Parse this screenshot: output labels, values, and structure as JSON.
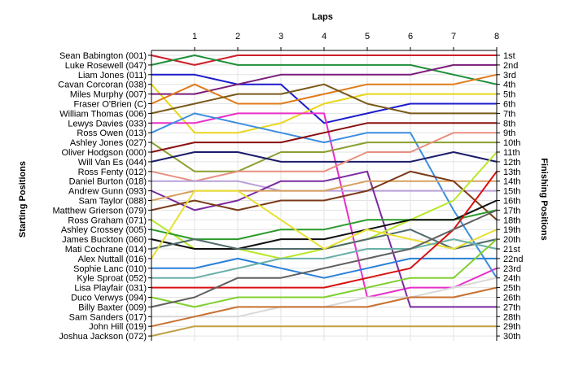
{
  "chart_data": {
    "type": "line",
    "title": "",
    "xlabel": "Laps",
    "ylabel": "Starting Positions",
    "y2label": "Finishing Positions",
    "x": [
      0,
      1,
      2,
      3,
      4,
      5,
      6,
      7,
      8
    ],
    "x_tick_labels": [
      "1",
      "2",
      "3",
      "4",
      "5",
      "6",
      "7",
      "8"
    ],
    "ylim": [
      1,
      30
    ],
    "y_inverted": true,
    "grid": true,
    "finishing_labels": [
      "1st",
      "2nd",
      "3rd",
      "4th",
      "5th",
      "6th",
      "7th",
      "8th",
      "9th",
      "10th",
      "11th",
      "12th",
      "13th",
      "14th",
      "15th",
      "16th",
      "17th",
      "18th",
      "19th",
      "20th",
      "21st",
      "22nd",
      "23rd",
      "24th",
      "25th",
      "26th",
      "27th",
      "28th",
      "29th",
      "30th"
    ],
    "series": [
      {
        "name": "Sean Babington (001)",
        "color": "#cc1f2a",
        "values": [
          1,
          2,
          1,
          1,
          1,
          1,
          1,
          1,
          1
        ]
      },
      {
        "name": "Luke Rosewell (047)",
        "color": "#1f8f3a",
        "values": [
          2,
          1,
          2,
          2,
          2,
          2,
          2,
          3,
          4
        ]
      },
      {
        "name": "Liam Jones (011)",
        "color": "#1c1ccc",
        "values": [
          3,
          3,
          4,
          4,
          8,
          7,
          6,
          6,
          6
        ]
      },
      {
        "name": "Cavan Corcoran (038)",
        "color": "#e8d61a",
        "values": [
          4,
          9,
          9,
          8,
          6,
          5,
          5,
          5,
          5
        ]
      },
      {
        "name": "Miles Murphy (007)",
        "color": "#7a1c7a",
        "values": [
          5,
          5,
          4,
          3,
          3,
          3,
          3,
          2,
          2
        ]
      },
      {
        "name": "Fraser O'Brien (C)",
        "color": "#e07b1a",
        "values": [
          6,
          4,
          6,
          6,
          5,
          4,
          4,
          4,
          3
        ]
      },
      {
        "name": "William Thomas (006)",
        "color": "#7a5a1a",
        "values": [
          7,
          6,
          5,
          5,
          4,
          6,
          7,
          7,
          7
        ]
      },
      {
        "name": "Lewys Davies (033)",
        "color": "#e830c8",
        "values": [
          8,
          8,
          7,
          7,
          7,
          26,
          25,
          25,
          23
        ]
      },
      {
        "name": "Ross Owen (013)",
        "color": "#3c8ee0",
        "values": [
          9,
          7,
          8,
          9,
          10,
          9,
          9,
          17,
          24
        ]
      },
      {
        "name": "Ashley Jones (027)",
        "color": "#8aa030",
        "values": [
          10,
          13,
          13,
          11,
          11,
          10,
          10,
          10,
          10
        ]
      },
      {
        "name": "Oliver Hodgson (000)",
        "color": "#8a1010",
        "values": [
          11,
          10,
          10,
          10,
          9,
          8,
          8,
          8,
          8
        ]
      },
      {
        "name": "Will Van Es (044)",
        "color": "#1c1c6a",
        "values": [
          12,
          11,
          11,
          12,
          12,
          12,
          12,
          11,
          12
        ]
      },
      {
        "name": "Ross Fenty (012)",
        "color": "#e89080",
        "values": [
          13,
          14,
          13,
          13,
          13,
          11,
          11,
          9,
          9
        ]
      },
      {
        "name": "Daniel Burton (018)",
        "color": "#b8a0d8",
        "values": [
          14,
          14,
          14,
          15,
          15,
          15,
          15,
          15,
          15
        ]
      },
      {
        "name": "Andrew Gunn (093)",
        "color": "#7a2aa0",
        "values": [
          15,
          17,
          16,
          14,
          14,
          13,
          27,
          27,
          27
        ]
      },
      {
        "name": "Sam Taylor (088)",
        "color": "#d8a060",
        "values": [
          16,
          15,
          15,
          15,
          15,
          14,
          14,
          14,
          14
        ]
      },
      {
        "name": "Matthew Grierson (079)",
        "color": "#7a3a1a",
        "values": [
          17,
          16,
          17,
          16,
          16,
          15,
          13,
          14,
          18
        ]
      },
      {
        "name": "Ross Graham (071)",
        "color": "#b8e828",
        "values": [
          18,
          21,
          21,
          22,
          21,
          20,
          18,
          16,
          11
        ]
      },
      {
        "name": "Ashley Crossey (005)",
        "color": "#2a9a2a",
        "values": [
          19,
          20,
          20,
          19,
          19,
          18,
          18,
          18,
          17
        ]
      },
      {
        "name": "James Buckton (060)",
        "color": "#101010",
        "values": [
          20,
          21,
          21,
          20,
          20,
          19,
          18,
          18,
          16
        ]
      },
      {
        "name": "Mati Cochrane (014)",
        "color": "#506a6a",
        "values": [
          21,
          20,
          21,
          21,
          21,
          20,
          19,
          21,
          20
        ]
      },
      {
        "name": "Alex Nuttall (016)",
        "color": "#e8e030",
        "values": [
          22,
          15,
          15,
          18,
          21,
          19,
          20,
          21,
          19
        ]
      },
      {
        "name": "Sophie Lanc (010)",
        "color": "#2a80d8",
        "values": [
          23,
          23,
          22,
          23,
          24,
          23,
          22,
          22,
          22
        ]
      },
      {
        "name": "Kyle Sproat (052)",
        "color": "#68b0a8",
        "values": [
          24,
          24,
          23,
          22,
          22,
          21,
          21,
          20,
          21
        ]
      },
      {
        "name": "Lisa Playfair (031)",
        "color": "#d81010",
        "values": [
          25,
          25,
          25,
          25,
          25,
          24,
          23,
          19,
          13
        ]
      },
      {
        "name": "Duco Verwys (094)",
        "color": "#80d030",
        "values": [
          26,
          27,
          26,
          26,
          26,
          25,
          24,
          24,
          20
        ]
      },
      {
        "name": "Billy Baxter (009)",
        "color": "#606060",
        "values": [
          27,
          26,
          24,
          24,
          23,
          22,
          21,
          19,
          17
        ]
      },
      {
        "name": "Sam Sanders (017)",
        "color": "#d8d8d8",
        "values": [
          28,
          28,
          28,
          27,
          27,
          26,
          26,
          25,
          24
        ]
      },
      {
        "name": "John Hill (019)",
        "color": "#c87030",
        "values": [
          29,
          28,
          27,
          27,
          27,
          27,
          26,
          26,
          25
        ]
      },
      {
        "name": "Joshua Jackson (072)",
        "color": "#c0a040",
        "values": [
          30,
          29,
          29,
          29,
          29,
          29,
          29,
          29,
          29
        ]
      }
    ]
  }
}
